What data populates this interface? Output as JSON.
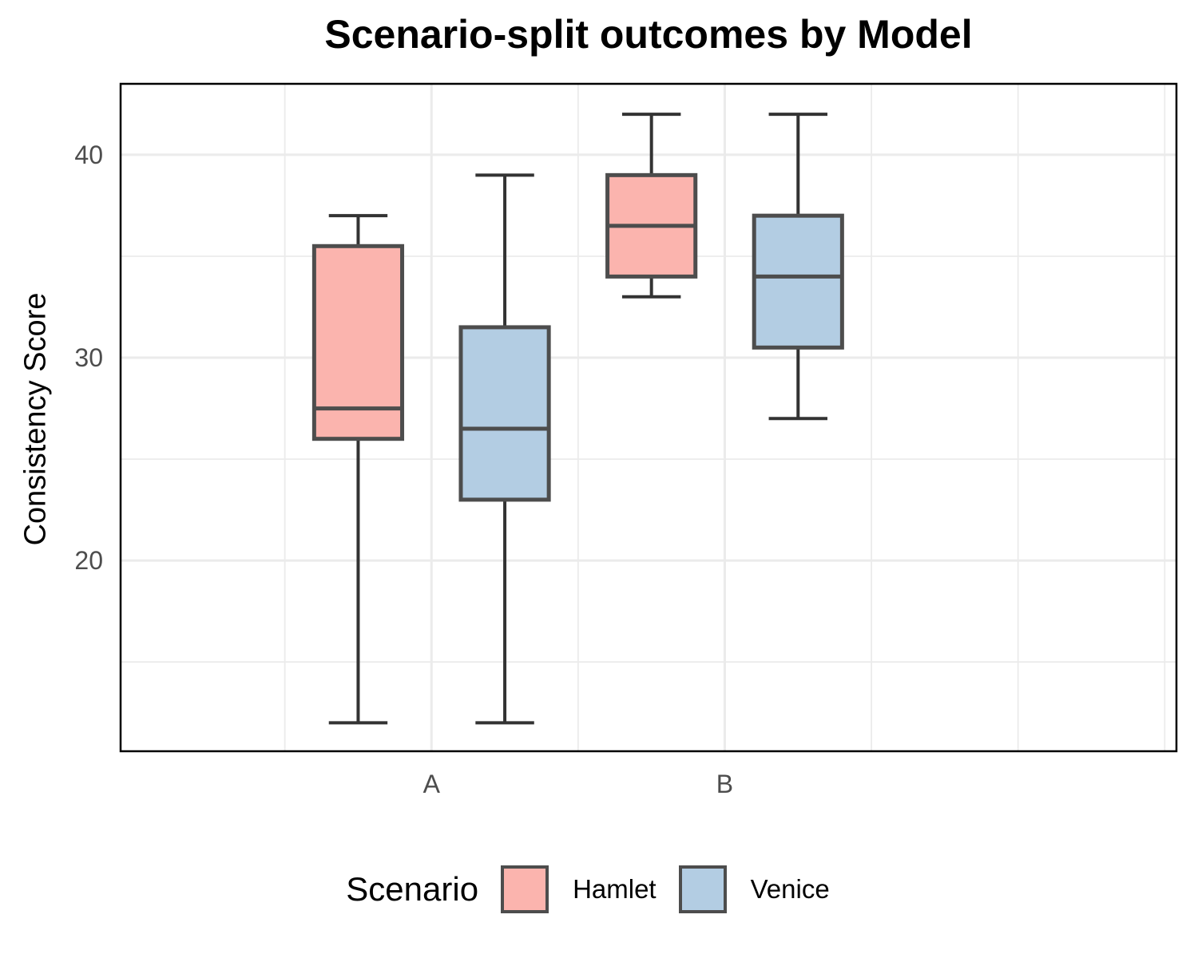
{
  "chart_data": {
    "type": "boxplot",
    "title": "Scenario-split outcomes by Model",
    "xlabel": "",
    "ylabel": "Consistency Score",
    "categories": [
      "A",
      "B"
    ],
    "ylim": [
      10.6,
      43.5
    ],
    "yticks": [
      20,
      30,
      40
    ],
    "grid": true,
    "legend": {
      "title": "Scenario",
      "position": "bottom"
    },
    "series": [
      {
        "name": "Hamlet",
        "color": "#FBB4AE",
        "boxes": [
          {
            "category": "A",
            "min": 12,
            "q1": 26,
            "median": 27.5,
            "q3": 35.5,
            "max": 37
          },
          {
            "category": "B",
            "min": 33,
            "q1": 34,
            "median": 36.5,
            "q3": 39,
            "max": 42
          }
        ]
      },
      {
        "name": "Venice",
        "color": "#B3CDE3",
        "boxes": [
          {
            "category": "A",
            "min": 12,
            "q1": 23,
            "median": 26.5,
            "q3": 31.5,
            "max": 39
          },
          {
            "category": "B",
            "min": 27,
            "q1": 30.5,
            "median": 34,
            "q3": 37,
            "max": 42
          }
        ]
      }
    ]
  }
}
